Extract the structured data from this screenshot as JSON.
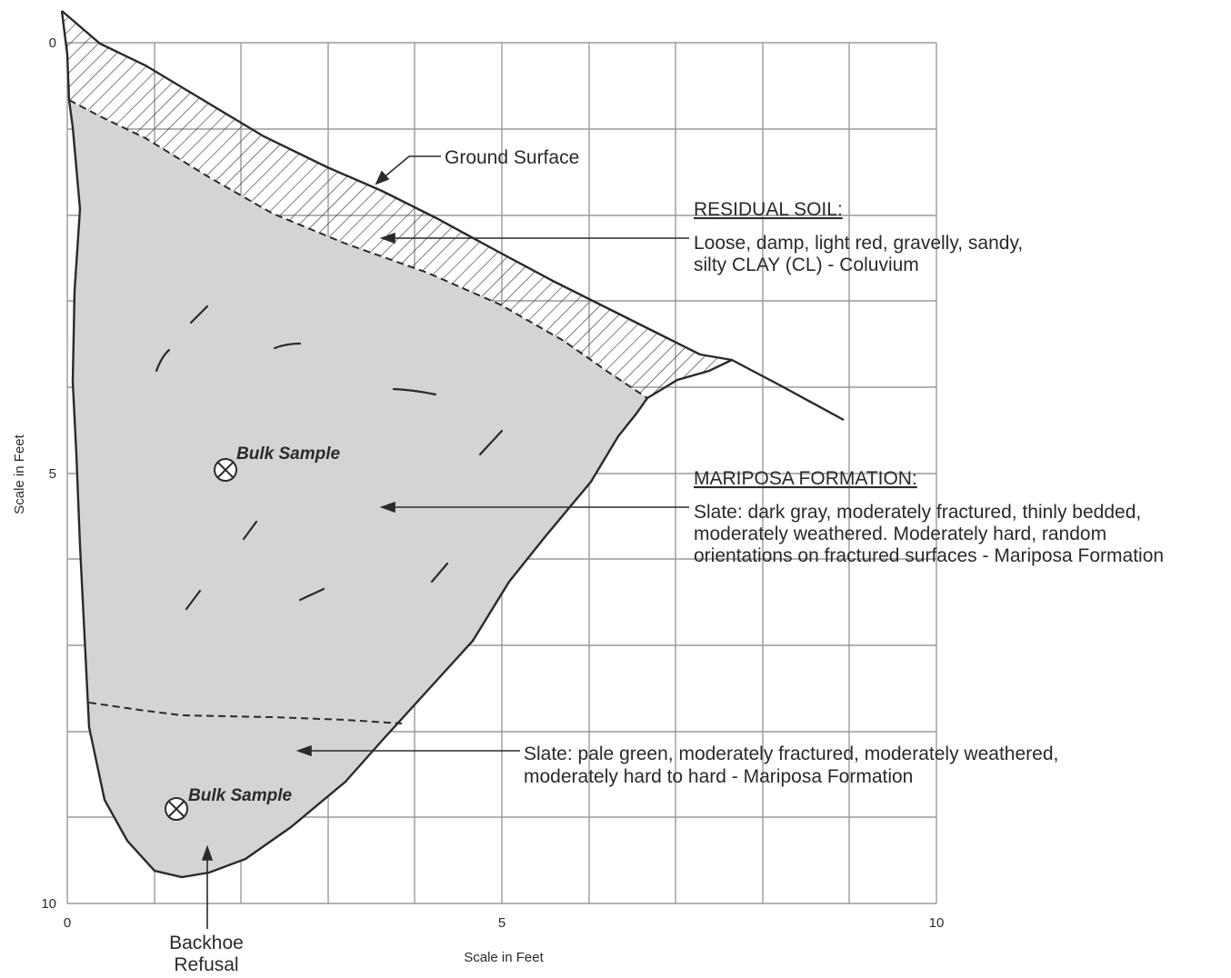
{
  "axes": {
    "x_title": "Scale in Feet",
    "y_title": "Scale in Feet",
    "x_ticks": [
      "0",
      "5",
      "10"
    ],
    "y_ticks": [
      "0",
      "5",
      "10"
    ],
    "x_range": [
      0,
      10
    ],
    "y_range": [
      0,
      10
    ],
    "grid": true
  },
  "callouts": {
    "ground_surface": "Ground Surface",
    "residual_soil": {
      "heading": "RESIDUAL SOIL:",
      "line1": "Loose, damp, light red, gravelly, sandy,",
      "line2": "silty CLAY (CL) - Coluvium"
    },
    "mariposa": {
      "heading": "MARIPOSA FORMATION:",
      "line1": "Slate: dark gray, moderately fractured, thinly bedded,",
      "line2": "moderately weathered. Moderately hard, random",
      "line3": "orientations on fractured surfaces - Mariposa Formation"
    },
    "slate_green": {
      "line1": "Slate: pale green, moderately fractured, moderately weathered,",
      "line2": "moderately hard to hard - Mariposa Formation"
    },
    "backhoe": {
      "line1": "Backhoe",
      "line2": "Refusal"
    }
  },
  "samples": [
    {
      "label": "Bulk Sample"
    },
    {
      "label": "Bulk Sample"
    }
  ],
  "colors": {
    "grid": "#9a9a9a",
    "outline": "#2a2a2a",
    "rock_fill": "#d4d4d4",
    "hatch": "#3a3a3a"
  }
}
